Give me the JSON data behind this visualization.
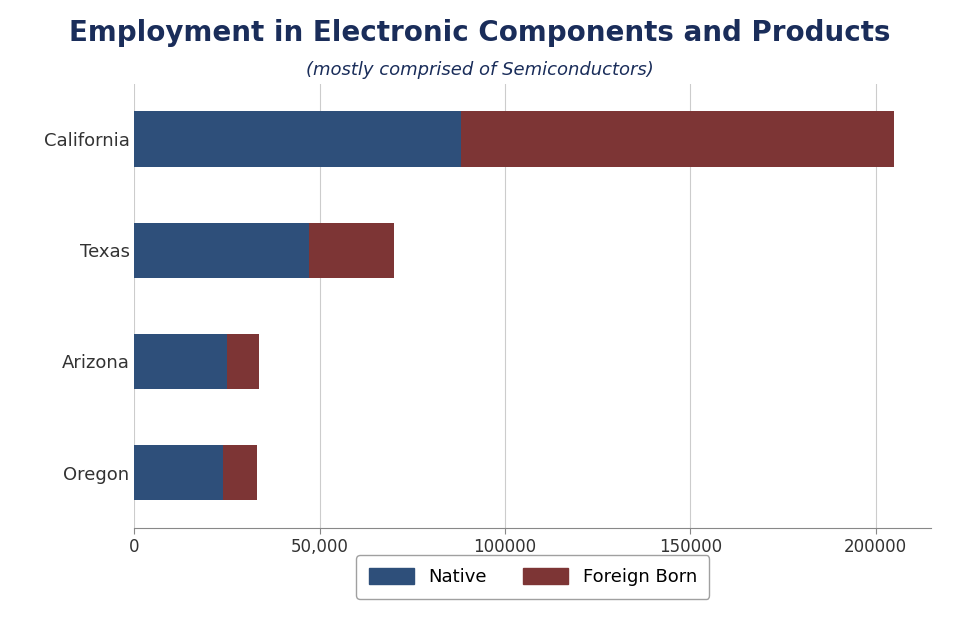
{
  "title": "Employment in Electronic Components and Products",
  "subtitle": "(mostly comprised of Semiconductors)",
  "categories": [
    "California",
    "Texas",
    "Arizona",
    "Oregon"
  ],
  "native": [
    88000,
    47000,
    25000,
    24000
  ],
  "foreign_born": [
    117000,
    23000,
    8500,
    9000
  ],
  "native_color": "#2e4f7a",
  "foreign_born_color": "#7d3535",
  "background_color": "#ffffff",
  "legend_native": "Native",
  "legend_foreign": "Foreign Born",
  "xlim": [
    0,
    215000
  ],
  "xticks": [
    0,
    50000,
    100000,
    150000,
    200000
  ],
  "xticklabels": [
    "0",
    "50,000",
    "100000",
    "150000",
    "200000"
  ],
  "title_color": "#1a2d5a",
  "subtitle_color": "#1a2d5a",
  "title_fontsize": 20,
  "subtitle_fontsize": 13,
  "label_fontsize": 13,
  "tick_fontsize": 12
}
